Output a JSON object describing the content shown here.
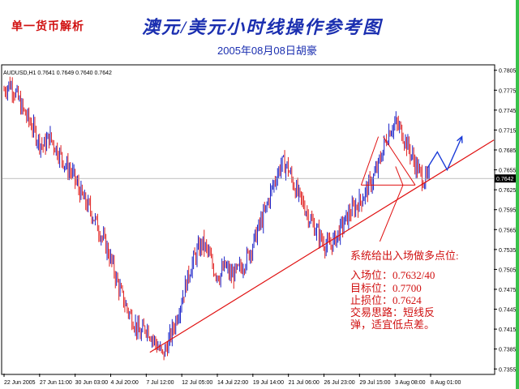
{
  "header": {
    "tag": "单一货币解析",
    "title": "澳元/美元小时线操作参考图",
    "subtitle": "2005年08月08日胡豪"
  },
  "colors": {
    "title": "#1b2fb0",
    "accent_red": "#d01010",
    "candle_up": "#1a22c8",
    "candle_down": "#e02020",
    "trendline": "#e01010",
    "projection": "#1a3bd8",
    "border": "#39c24a"
  },
  "chart_data": {
    "type": "line",
    "symbol_info": "AUDUSD,H1  0.7641 0.7649 0.7640 0.7642",
    "current_price_label": "0.7642",
    "current_price": 0.7642,
    "ylim": [
      0.7348,
      0.7812
    ],
    "y_ticks": [
      "0.7805",
      "0.7775",
      "0.7745",
      "0.7715",
      "0.7685",
      "0.7655",
      "0.7625",
      "0.7595",
      "0.7565",
      "0.7535",
      "0.7505",
      "0.7475",
      "0.7445",
      "0.7415",
      "0.7385",
      "0.7355"
    ],
    "x_ticks": [
      "22 Jun 2005",
      "27 Jun 11:00",
      "30 Jun 03:00",
      "4 Jul 20:00",
      "7 Jul 12:00",
      "12 Jul 05:00",
      "14 Jul 22:00",
      "19 Jul 14:00",
      "21 Jul 06:00",
      "26 Jul 23:00",
      "29 Jul 15:00",
      "3 Aug 08:00",
      "8 Aug 01:00"
    ],
    "series": [
      {
        "values": [
          0.7775,
          0.7785,
          0.7772,
          0.775,
          0.7735,
          0.772,
          0.77,
          0.769,
          0.7705,
          0.769,
          0.7676,
          0.766,
          0.765,
          0.763,
          0.761,
          0.7598,
          0.758,
          0.756,
          0.754,
          0.7515,
          0.7485,
          0.746,
          0.744,
          0.7425,
          0.7405,
          0.742,
          0.7405,
          0.739,
          0.7375,
          0.7395,
          0.742,
          0.745,
          0.748,
          0.751,
          0.753,
          0.7545,
          0.753,
          0.7505,
          0.7495,
          0.751,
          0.7495,
          0.75,
          0.751,
          0.7525,
          0.7545,
          0.757,
          0.759,
          0.762,
          0.7645,
          0.7665,
          0.766,
          0.7635,
          0.7615,
          0.76,
          0.758,
          0.7565,
          0.755,
          0.754,
          0.7545,
          0.756,
          0.7575,
          0.759,
          0.76,
          0.761,
          0.7625,
          0.764,
          0.766,
          0.769,
          0.7715,
          0.7725,
          0.7715,
          0.7695,
          0.7675,
          0.7655,
          0.764,
          0.7642
        ]
      }
    ]
  },
  "annotations": {
    "trendline": [
      [
        0.3,
        0.738
      ],
      [
        1.0,
        0.77
      ]
    ],
    "entry_level": 0.7632,
    "support_level": 0.7624,
    "projection": [
      [
        0.865,
        0.7658
      ],
      [
        0.885,
        0.7682
      ],
      [
        0.905,
        0.7655
      ],
      [
        0.935,
        0.7705
      ]
    ],
    "notes": [
      "系统给出入场做多点位:",
      "入场位：0.7632/40",
      "目标位：0.7700",
      "止损位：0.7624",
      "交易思路：短线反",
      "弹，适宜低点差。"
    ]
  }
}
